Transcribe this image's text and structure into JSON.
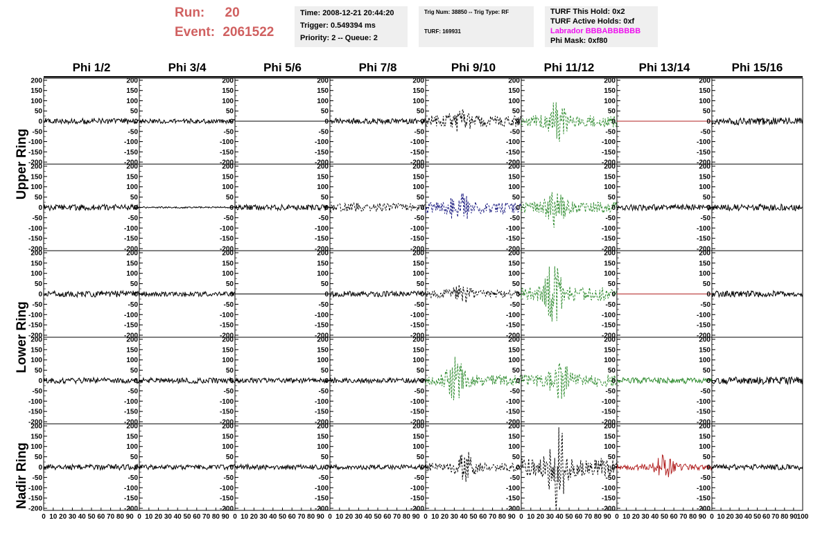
{
  "run_block": {
    "run_label": "Run:",
    "run_value": "20",
    "event_label": "Event:",
    "event_value": "2061522"
  },
  "time_box": {
    "time": "Time: 2008-12-21 20:44:20",
    "trigger": "Trigger: 0.549394 ms",
    "priority": "Priority: 2 -- Queue: 2"
  },
  "trig_box": {
    "trig": "Trig Num: 38850 -- Trig Type: RF",
    "turf": "TURF: 169931"
  },
  "turf_box": {
    "this_hold": "TURF This Hold: 0x2",
    "active_holds": "TURF Active Holds: 0xf",
    "labrador": "Labrador BBBABBBBBB",
    "phi_mask": "Phi Mask: 0xf80"
  },
  "colors": {
    "black": "#000000",
    "green": "#2e8b2e",
    "blue": "#1a1a80",
    "red": "#b22222",
    "header_red": "#d06060",
    "magenta": "#ee11ee",
    "panel_bg": "#efefef"
  },
  "chart_data": {
    "type": "line",
    "columns": [
      "Phi 1/2",
      "Phi 3/4",
      "Phi 5/6",
      "Phi 7/8",
      "Phi 9/10",
      "Phi 11/12",
      "Phi 13/14",
      "Phi 15/16"
    ],
    "ring_labels": [
      "Upper Ring",
      "Lower Ring",
      "Nadir Ring"
    ],
    "ylim": [
      -210,
      210
    ],
    "yticks": [
      -200,
      -150,
      -100,
      -50,
      0,
      50,
      100,
      150,
      200
    ],
    "xlim": [
      0,
      100
    ],
    "xticks": [
      0,
      10,
      20,
      30,
      40,
      50,
      60,
      70,
      80,
      90,
      100
    ],
    "x_tick_label_row": "0 10 20 30 40 50 60 70 80 90 100",
    "panels": [
      [
        {
          "color": "black",
          "amp": 15,
          "style": "solid"
        },
        {
          "color": "black",
          "amp": 12,
          "style": "solid"
        },
        {
          "color": "black",
          "amp": 0,
          "style": "flat"
        },
        {
          "color": "black",
          "amp": 14,
          "style": "solid"
        },
        {
          "color": "black",
          "amp": 30,
          "style": "dashed",
          "burst": 40,
          "burst_at": 35
        },
        {
          "color": "green",
          "amp": 30,
          "style": "dashed",
          "burst": 90,
          "burst_at": 38
        },
        {
          "color": "red",
          "amp": 0,
          "style": "flat"
        },
        {
          "color": "black",
          "amp": 18,
          "style": "solid"
        }
      ],
      [
        {
          "color": "black",
          "amp": 15,
          "style": "solid"
        },
        {
          "color": "black",
          "amp": 4,
          "style": "solid"
        },
        {
          "color": "black",
          "amp": 14,
          "style": "solid"
        },
        {
          "color": "black",
          "amp": 22,
          "style": "dashed"
        },
        {
          "color": "blue",
          "amp": 30,
          "style": "dashed",
          "burst": 70,
          "burst_at": 35
        },
        {
          "color": "green",
          "amp": 28,
          "style": "dashed",
          "burst": 85,
          "burst_at": 36
        },
        {
          "color": "black",
          "amp": 15,
          "style": "solid"
        },
        {
          "color": "black",
          "amp": 16,
          "style": "solid"
        }
      ],
      [
        {
          "color": "black",
          "amp": 16,
          "style": "solid"
        },
        {
          "color": "black",
          "amp": 12,
          "style": "solid"
        },
        {
          "color": "black",
          "amp": 0,
          "style": "flat"
        },
        {
          "color": "black",
          "amp": 14,
          "style": "solid"
        },
        {
          "color": "black",
          "amp": 20,
          "style": "dashed",
          "burst": 30,
          "burst_at": 38
        },
        {
          "color": "green",
          "amp": 35,
          "style": "dashed",
          "burst": 140,
          "burst_at": 34
        },
        {
          "color": "red",
          "amp": 0,
          "style": "flat"
        },
        {
          "color": "black",
          "amp": 15,
          "style": "solid"
        }
      ],
      [
        {
          "color": "black",
          "amp": 14,
          "style": "solid"
        },
        {
          "color": "black",
          "amp": 14,
          "style": "solid"
        },
        {
          "color": "black",
          "amp": 13,
          "style": "solid"
        },
        {
          "color": "black",
          "amp": 13,
          "style": "solid"
        },
        {
          "color": "green",
          "amp": 28,
          "style": "dashed",
          "burst": 90,
          "burst_at": 32
        },
        {
          "color": "green",
          "amp": 32,
          "style": "dashed",
          "burst": 80,
          "burst_at": 40
        },
        {
          "color": "green",
          "amp": 15,
          "style": "solid"
        },
        {
          "color": "black",
          "amp": 18,
          "style": "solid"
        }
      ],
      [
        {
          "color": "black",
          "amp": 14,
          "style": "solid"
        },
        {
          "color": "black",
          "amp": 12,
          "style": "solid"
        },
        {
          "color": "black",
          "amp": 13,
          "style": "solid"
        },
        {
          "color": "black",
          "amp": 12,
          "style": "solid"
        },
        {
          "color": "black",
          "amp": 22,
          "style": "dashed",
          "burst": 60,
          "burst_at": 42
        },
        {
          "color": "black",
          "amp": 45,
          "style": "dashed",
          "burst": 200,
          "burst_at": 38
        },
        {
          "color": "red",
          "amp": 15,
          "style": "solid",
          "burst": 55,
          "burst_at": 50
        },
        {
          "color": "black",
          "amp": 14,
          "style": "solid"
        }
      ]
    ]
  }
}
